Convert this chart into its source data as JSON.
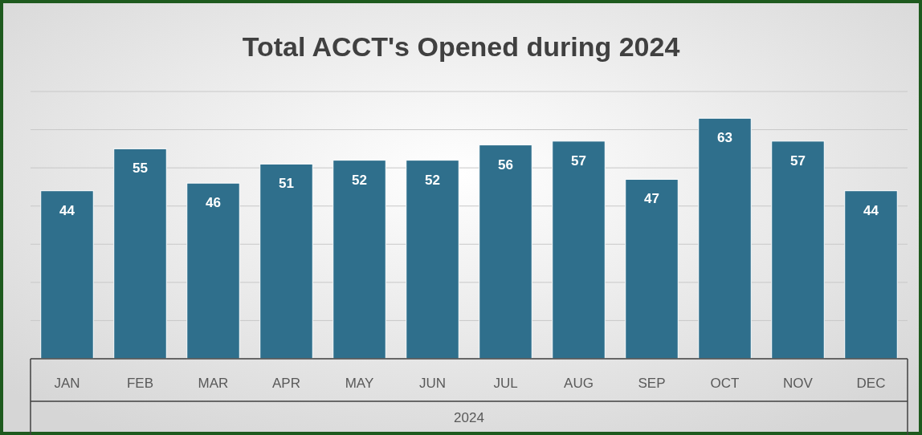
{
  "chart_data": {
    "type": "bar",
    "title": "Total ACCT's Opened during 2024",
    "xlabel": "2024",
    "categories": [
      "JAN",
      "FEB",
      "MAR",
      "APR",
      "MAY",
      "JUN",
      "JUL",
      "AUG",
      "SEP",
      "OCT",
      "NOV",
      "DEC"
    ],
    "values": [
      44,
      55,
      46,
      51,
      52,
      52,
      56,
      57,
      47,
      63,
      57,
      44
    ],
    "color": "#2f6f8c",
    "data_labels": true,
    "ylim": [
      0,
      70
    ],
    "yticks": [
      {
        "value": 0,
        "label": null
      },
      {
        "value": 10,
        "label": null
      },
      {
        "value": 20,
        "label": null
      },
      {
        "value": 30,
        "label": null
      },
      {
        "value": 40,
        "label": null
      },
      {
        "value": 50,
        "label": null
      },
      {
        "value": 60,
        "label": null
      },
      {
        "value": 70,
        "label": null
      }
    ],
    "grid": "y",
    "tick_labels": "x"
  }
}
